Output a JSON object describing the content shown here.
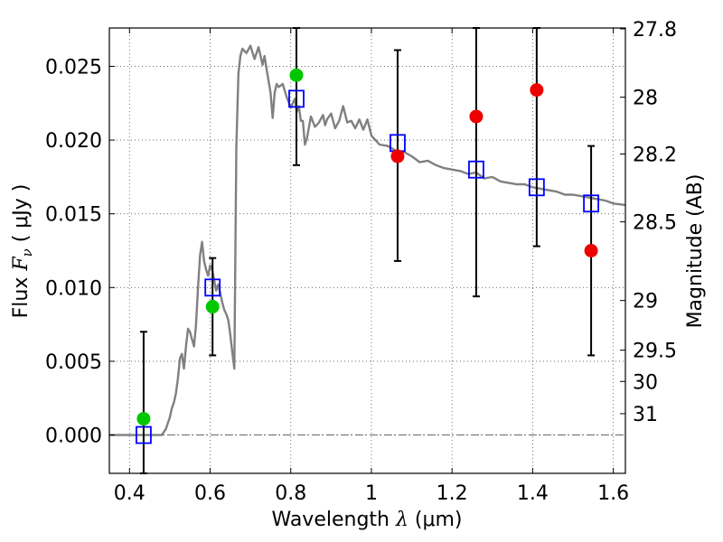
{
  "chart_data": {
    "type": "scatter",
    "xlabel": {
      "prefix": "Wavelength  ",
      "symbol": "λ",
      "units": " (μm)"
    },
    "ylabel": {
      "prefix": "Flux  ",
      "symbol": "F",
      "subscript": "ν",
      "units": "  ( μJy )"
    },
    "ylabel_right": "Magnitude (AB)",
    "xlim": [
      0.35,
      1.63
    ],
    "ylim": [
      -0.0026,
      0.0276
    ],
    "x_ticks": [
      0.4,
      0.6,
      0.8,
      1.0,
      1.2,
      1.4,
      1.6
    ],
    "x_tick_labels": [
      "0.4",
      "0.6",
      "0.8",
      "1",
      "1.2",
      "1.4",
      "1.6"
    ],
    "y_ticks": [
      0.0,
      0.005,
      0.01,
      0.015,
      0.02,
      0.025
    ],
    "y_tick_labels": [
      "0.000",
      "0.005",
      "0.010",
      "0.015",
      "0.020",
      "0.025"
    ],
    "right_ticks": [
      {
        "label": "27.8",
        "mag": 27.8
      },
      {
        "label": "28",
        "mag": 28.0
      },
      {
        "label": "28.2",
        "mag": 28.2
      },
      {
        "label": "28.5",
        "mag": 28.5
      },
      {
        "label": "29",
        "mag": 29.0
      },
      {
        "label": "29.5",
        "mag": 29.5
      },
      {
        "label": "30",
        "mag": 30.0
      },
      {
        "label": "31",
        "mag": 31.0
      }
    ],
    "grid": true,
    "zero_line": 0.0,
    "colors": {
      "sed": "#808080",
      "model": "#0000ff",
      "green": "#00c800",
      "red": "#ee0000",
      "errorbar": "#000000",
      "grid": "#555555"
    },
    "series": [
      {
        "name": "model_sed",
        "style": "line",
        "x": [
          0.35,
          0.48,
          0.49,
          0.5,
          0.505,
          0.51,
          0.515,
          0.52,
          0.525,
          0.53,
          0.535,
          0.54,
          0.545,
          0.55,
          0.555,
          0.56,
          0.565,
          0.57,
          0.575,
          0.58,
          0.585,
          0.59,
          0.595,
          0.6,
          0.605,
          0.61,
          0.615,
          0.62,
          0.625,
          0.63,
          0.635,
          0.64,
          0.645,
          0.65,
          0.655,
          0.66,
          0.665,
          0.67,
          0.675,
          0.68,
          0.69,
          0.7,
          0.71,
          0.72,
          0.73,
          0.735,
          0.74,
          0.75,
          0.755,
          0.76,
          0.765,
          0.77,
          0.78,
          0.79,
          0.8,
          0.81,
          0.815,
          0.82,
          0.825,
          0.83,
          0.835,
          0.84,
          0.85,
          0.86,
          0.87,
          0.88,
          0.885,
          0.89,
          0.9,
          0.91,
          0.92,
          0.93,
          0.94,
          0.95,
          0.96,
          0.97,
          0.98,
          0.99,
          1.0,
          1.02,
          1.04,
          1.06,
          1.08,
          1.1,
          1.12,
          1.14,
          1.16,
          1.18,
          1.2,
          1.22,
          1.24,
          1.26,
          1.28,
          1.3,
          1.32,
          1.34,
          1.36,
          1.38,
          1.4,
          1.42,
          1.44,
          1.46,
          1.48,
          1.5,
          1.52,
          1.54,
          1.56,
          1.58,
          1.6,
          1.63
        ],
        "y": [
          0.0,
          0.0,
          0.0004,
          0.0012,
          0.0018,
          0.0022,
          0.0028,
          0.0038,
          0.0052,
          0.0055,
          0.0045,
          0.006,
          0.0072,
          0.007,
          0.0065,
          0.006,
          0.0075,
          0.01,
          0.0122,
          0.0131,
          0.0118,
          0.0112,
          0.0108,
          0.0115,
          0.0112,
          0.0105,
          0.0098,
          0.0102,
          0.0096,
          0.009,
          0.0085,
          0.0082,
          0.0078,
          0.0068,
          0.0056,
          0.0045,
          0.0195,
          0.0245,
          0.0257,
          0.0262,
          0.0259,
          0.0264,
          0.0255,
          0.0263,
          0.0251,
          0.0257,
          0.0248,
          0.0232,
          0.0215,
          0.0232,
          0.0238,
          0.0236,
          0.0238,
          0.0229,
          0.0222,
          0.0228,
          0.0219,
          0.0223,
          0.0213,
          0.0213,
          0.0197,
          0.0201,
          0.0216,
          0.0209,
          0.0212,
          0.0217,
          0.021,
          0.0214,
          0.0218,
          0.0208,
          0.0213,
          0.0223,
          0.0212,
          0.0213,
          0.0208,
          0.0214,
          0.0207,
          0.0214,
          0.0203,
          0.0197,
          0.0196,
          0.0193,
          0.0192,
          0.0189,
          0.0185,
          0.0186,
          0.0183,
          0.0181,
          0.018,
          0.0179,
          0.0177,
          0.0178,
          0.0174,
          0.0175,
          0.0172,
          0.0171,
          0.017,
          0.017,
          0.0168,
          0.0167,
          0.0166,
          0.0165,
          0.0163,
          0.0163,
          0.0162,
          0.0161,
          0.016,
          0.0159,
          0.0157,
          0.0156
        ]
      },
      {
        "name": "model_band_flux",
        "style": "open-square",
        "x": [
          0.435,
          0.606,
          0.814,
          1.065,
          1.26,
          1.41,
          1.545
        ],
        "y": [
          0.0,
          0.01,
          0.0228,
          0.0198,
          0.018,
          0.0168,
          0.0157
        ]
      },
      {
        "name": "green_detections",
        "style": "filled-circle",
        "x": [
          0.435,
          0.606,
          0.814
        ],
        "y": [
          0.0011,
          0.0087,
          0.0244
        ]
      },
      {
        "name": "red_detections",
        "style": "filled-circle",
        "x": [
          1.065,
          1.26,
          1.41,
          1.545
        ],
        "y": [
          0.0189,
          0.0216,
          0.0234,
          0.0125
        ]
      },
      {
        "name": "error_bars",
        "style": "errorbar",
        "items": [
          {
            "x": 0.435,
            "low": -0.0026,
            "high": 0.007
          },
          {
            "x": 0.606,
            "low": 0.0054,
            "high": 0.012
          },
          {
            "x": 0.814,
            "low": 0.0183,
            "high": 0.0276
          },
          {
            "x": 1.065,
            "low": 0.0118,
            "high": 0.0261
          },
          {
            "x": 1.26,
            "low": 0.0094,
            "high": 0.0276
          },
          {
            "x": 1.41,
            "low": 0.0128,
            "high": 0.0276
          },
          {
            "x": 1.545,
            "low": 0.0054,
            "high": 0.0196
          }
        ]
      }
    ]
  }
}
